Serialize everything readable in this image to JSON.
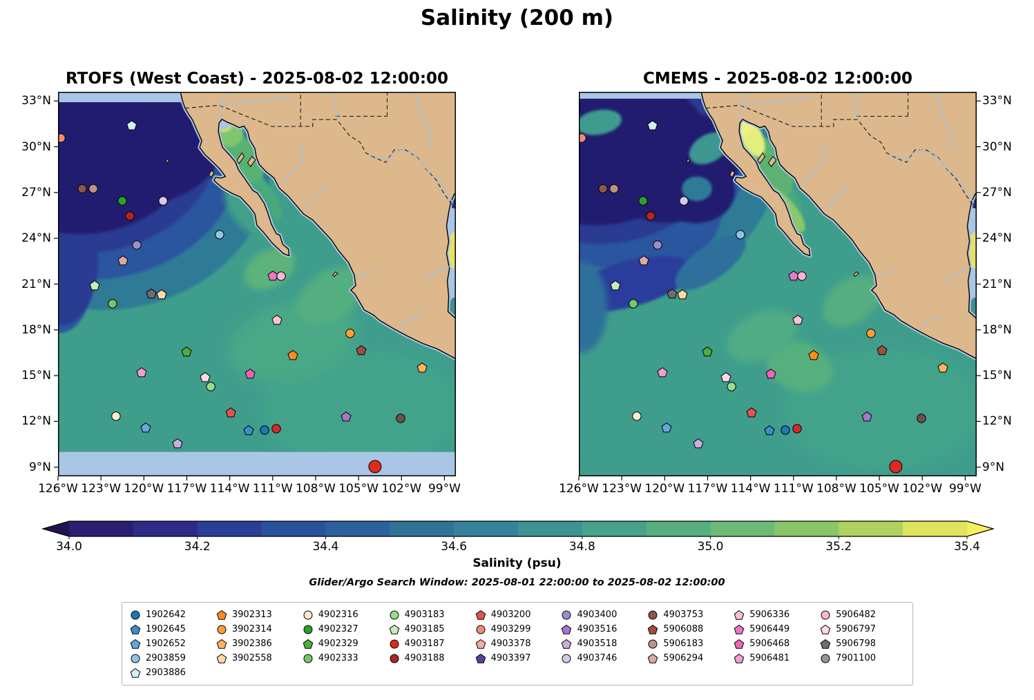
{
  "title": "Salinity (200 m)",
  "subtitle": "Glider/Argo Search Window: 2025-08-01 22:00:00 to 2025-08-02 12:00:00",
  "panels": [
    {
      "title": "RTOFS (West Coast) - 2025-08-02 12:00:00"
    },
    {
      "title": "CMEMS - 2025-08-02 12:00:00"
    }
  ],
  "colorbar": {
    "label": "Salinity (psu)",
    "tick_labels": [
      "34.0",
      "34.2",
      "34.4",
      "34.6",
      "34.8",
      "35.0",
      "35.2",
      "35.4"
    ]
  },
  "axes": {
    "lat_tick_labels": [
      "33°N",
      "30°N",
      "27°N",
      "24°N",
      "21°N",
      "18°N",
      "15°N",
      "12°N",
      "9°N"
    ],
    "lon_tick_labels": [
      "126°W",
      "123°W",
      "120°W",
      "117°W",
      "114°W",
      "111°W",
      "108°W",
      "105°W",
      "102°W",
      "99°W"
    ]
  },
  "chart_data": {
    "type": "heatmap",
    "subtype": "geographic filled-contour salinity maps, two-model comparison with Argo/glider platform markers",
    "title": "Salinity (200 m)",
    "panel_titles": [
      "RTOFS (West Coast) - 2025-08-02 12:00:00",
      "CMEMS - 2025-08-02 12:00:00"
    ],
    "value_label": "Salinity (psu)",
    "value_range": [
      34.0,
      35.4
    ],
    "colorbar_ticks": [
      34.0,
      34.2,
      34.4,
      34.6,
      34.8,
      35.0,
      35.2,
      35.4
    ],
    "levels": [
      34.0,
      34.1,
      34.2,
      34.3,
      34.4,
      34.5,
      34.6,
      34.7,
      34.8,
      34.9,
      35.0,
      35.1,
      35.2,
      35.3,
      35.4
    ],
    "level_colors": [
      "#2b1e72",
      "#2e2b88",
      "#2b3e97",
      "#2a519c",
      "#2c629c",
      "#2f7399",
      "#35839a",
      "#3d9394",
      "#47a28c",
      "#57ae81",
      "#6cba75",
      "#8bc569",
      "#b1d160",
      "#dfe45c"
    ],
    "under_color": "#231250",
    "over_color": "#f6ee5e",
    "lat_ticks": [
      33,
      30,
      27,
      24,
      21,
      18,
      15,
      12,
      9
    ],
    "lon_ticks": [
      -126,
      -123,
      -120,
      -117,
      -114,
      -111,
      -108,
      -105,
      -102,
      -99
    ],
    "lat_range": [
      8.4,
      33.6
    ],
    "lon_range": [
      -126,
      -98.2
    ],
    "map_colors": {
      "land": "#dcb88c",
      "coastline": "#000000",
      "coastal_halo": "#a9c6e4",
      "no_data": "#a9c6e4",
      "ocean_base": "#3f9d8c",
      "deep_minimum": "#241d70",
      "river": "#9dc3e6"
    },
    "legend_column_sizes": [
      5,
      4,
      4,
      4,
      4,
      4,
      4,
      4,
      4
    ],
    "legend_entries": [
      {
        "id": "1902642",
        "shape": "circle",
        "color": "#1f77b4"
      },
      {
        "id": "1902645",
        "shape": "pentagon",
        "color": "#3e8ec4"
      },
      {
        "id": "1902652",
        "shape": "pentagon",
        "color": "#64a8d8"
      },
      {
        "id": "2903859",
        "shape": "circle",
        "color": "#8ec4e8"
      },
      {
        "id": "2903886",
        "shape": "pentagon",
        "color": "#d2eef4"
      },
      {
        "id": "3902313",
        "shape": "pentagon",
        "color": "#ff8c1a"
      },
      {
        "id": "3902314",
        "shape": "circle",
        "color": "#ffa033"
      },
      {
        "id": "3902386",
        "shape": "pentagon",
        "color": "#ffb45e"
      },
      {
        "id": "3902558",
        "shape": "pentagon",
        "color": "#ffd9a6"
      },
      {
        "id": "4902316",
        "shape": "circle",
        "color": "#ffeacc"
      },
      {
        "id": "4902327",
        "shape": "circle",
        "color": "#2ca02c"
      },
      {
        "id": "4902329",
        "shape": "pentagon",
        "color": "#4cae3e"
      },
      {
        "id": "4902333",
        "shape": "circle",
        "color": "#74c76a"
      },
      {
        "id": "4903183",
        "shape": "circle",
        "color": "#98dc8c"
      },
      {
        "id": "4903185",
        "shape": "pentagon",
        "color": "#c6ecba"
      },
      {
        "id": "4903187",
        "shape": "circle",
        "color": "#e02a1f"
      },
      {
        "id": "4903188",
        "shape": "circle",
        "color": "#b42420"
      },
      {
        "id": "4903200",
        "shape": "pentagon",
        "color": "#e4534e"
      },
      {
        "id": "4903299",
        "shape": "circle",
        "color": "#f08a7a"
      },
      {
        "id": "4903378",
        "shape": "pentagon",
        "color": "#f5ada4"
      },
      {
        "id": "4903397",
        "shape": "pentagon",
        "color": "#5e3f9e"
      },
      {
        "id": "4903400",
        "shape": "circle",
        "color": "#9e8cc8"
      },
      {
        "id": "4903516",
        "shape": "pentagon",
        "color": "#a678c8"
      },
      {
        "id": "4903518",
        "shape": "pentagon",
        "color": "#c7aede"
      },
      {
        "id": "4903746",
        "shape": "circle",
        "color": "#d8c8ec"
      },
      {
        "id": "4903753",
        "shape": "circle",
        "color": "#8c564b"
      },
      {
        "id": "5906088",
        "shape": "pentagon",
        "color": "#9e4f40"
      },
      {
        "id": "5906183",
        "shape": "circle",
        "color": "#bd9286"
      },
      {
        "id": "5906294",
        "shape": "pentagon",
        "color": "#d9aaa0"
      },
      {
        "id": "5906336",
        "shape": "pentagon",
        "color": "#f9c2d6"
      },
      {
        "id": "5906449",
        "shape": "pentagon",
        "color": "#e878c4"
      },
      {
        "id": "5906468",
        "shape": "pentagon",
        "color": "#ee64ba"
      },
      {
        "id": "5906481",
        "shape": "pentagon",
        "color": "#f49ecc"
      },
      {
        "id": "5906482",
        "shape": "circle",
        "color": "#f7b6d4"
      },
      {
        "id": "5906797",
        "shape": "pentagon",
        "color": "#fbd8ea"
      },
      {
        "id": "5906798",
        "shape": "pentagon",
        "color": "#6e6e6e"
      },
      {
        "id": "7901100",
        "shape": "circle",
        "color": "#969696"
      }
    ],
    "markers": [
      {
        "ref": "2903886",
        "lon": -120.85,
        "lat": 31.38
      },
      {
        "ref": "4903299",
        "lon": -125.8,
        "lat": 30.57
      },
      {
        "ref": "4903753",
        "lon": -124.31,
        "lat": 27.25
      },
      {
        "ref": "5906183",
        "lon": -123.54,
        "lat": 27.25
      },
      {
        "ref": "4902327",
        "lon": -121.51,
        "lat": 26.45
      },
      {
        "ref": "4903746",
        "lon": -118.66,
        "lat": 26.45
      },
      {
        "ref": "4903188",
        "lon": -120.98,
        "lat": 25.46
      },
      {
        "ref": "2903859",
        "lon": -114.71,
        "lat": 24.24
      },
      {
        "ref": "4903400",
        "lon": -120.5,
        "lat": 23.56
      },
      {
        "ref": "5906294",
        "lon": -121.46,
        "lat": 22.52
      },
      {
        "ref": "5906449",
        "lon": -110.99,
        "lat": 21.52
      },
      {
        "ref": "5906482",
        "lon": -110.41,
        "lat": 21.52
      },
      {
        "ref": "4903185",
        "lon": -123.44,
        "lat": 20.89
      },
      {
        "ref": "5906798",
        "lon": -119.48,
        "lat": 20.35
      },
      {
        "ref": "3902558",
        "lon": -118.76,
        "lat": 20.3
      },
      {
        "ref": "4902333",
        "lon": -122.19,
        "lat": 19.71
      },
      {
        "ref": "5906336",
        "lon": -110.7,
        "lat": 18.63
      },
      {
        "ref": "3902314",
        "lon": -105.59,
        "lat": 17.77
      },
      {
        "ref": "4902329",
        "lon": -117.02,
        "lat": 16.55
      },
      {
        "ref": "3902313",
        "lon": -109.59,
        "lat": 16.32
      },
      {
        "ref": "5906088",
        "lon": -104.81,
        "lat": 16.64
      },
      {
        "ref": "3902386",
        "lon": -100.56,
        "lat": 15.5
      },
      {
        "ref": "5906481",
        "lon": -120.16,
        "lat": 15.19
      },
      {
        "ref": "5906797",
        "lon": -115.72,
        "lat": 14.87
      },
      {
        "ref": "5906468",
        "lon": -112.58,
        "lat": 15.1
      },
      {
        "ref": "4903183",
        "lon": -115.33,
        "lat": 14.28
      },
      {
        "ref": "4902316",
        "lon": -121.95,
        "lat": 12.34
      },
      {
        "ref": "4903200",
        "lon": -113.93,
        "lat": 12.56
      },
      {
        "ref": "4903516",
        "lon": -105.87,
        "lat": 12.29
      },
      {
        "ref": "7901100",
        "lon": -102.06,
        "lat": 12.2,
        "color": "#6f5046",
        "shape": "circle"
      },
      {
        "ref": "1902652",
        "lon": -119.87,
        "lat": 11.57
      },
      {
        "ref": "1902645",
        "lon": -112.68,
        "lat": 11.39
      },
      {
        "ref": "1902642",
        "lon": -111.57,
        "lat": 11.43
      },
      {
        "lon": -110.75,
        "lat": 11.52,
        "color": "#d62728",
        "shape": "circle"
      },
      {
        "ref": "4903518",
        "lon": -117.65,
        "lat": 10.53
      },
      {
        "ref": "4903187",
        "lon": -103.85,
        "lat": 9.04,
        "size": 9
      }
    ]
  }
}
